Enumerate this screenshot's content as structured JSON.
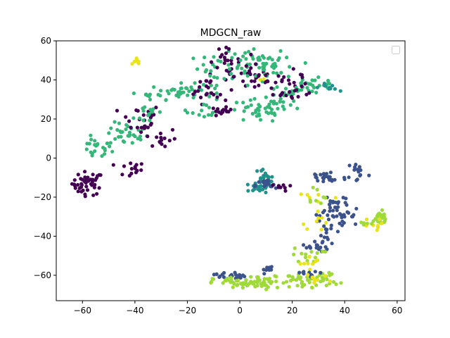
{
  "chart_data": {
    "type": "scatter",
    "title": "MDGCN_raw",
    "xlabel": "",
    "ylabel": "",
    "xlim": [
      -70,
      63
    ],
    "ylim": [
      -73,
      60
    ],
    "x_ticks": [
      -60,
      -40,
      -20,
      0,
      20,
      40,
      60
    ],
    "y_ticks": [
      -60,
      -40,
      -20,
      0,
      20,
      40,
      60
    ],
    "x_tick_labels": [
      "−60",
      "−40",
      "−20",
      "0",
      "20",
      "40",
      "60"
    ],
    "y_tick_labels": [
      "−60",
      "−40",
      "−20",
      "0",
      "20",
      "40",
      "60"
    ],
    "grid": false,
    "legend": {
      "placement": "top-right",
      "entries": []
    },
    "colormap": "viridis",
    "palette": {
      "dark_purple": "#440154",
      "indigo": "#3b528b",
      "teal": "#21918c",
      "green": "#35b779",
      "lime": "#a0da39",
      "yellow": "#e8e419"
    },
    "clusters": [
      {
        "color": "yellow",
        "cx": -39,
        "cy": 49,
        "sx": 1,
        "sy": 1.5,
        "n": 8
      },
      {
        "color": "dark_purple",
        "cx": -58,
        "cy": -13,
        "sx": 3,
        "sy": 3,
        "n": 45
      },
      {
        "color": "dark_purple",
        "cx": -42,
        "cy": -6,
        "sx": 3,
        "sy": 2,
        "n": 14
      },
      {
        "color": "green",
        "cx": -55,
        "cy": 5,
        "sx": 3,
        "sy": 3,
        "n": 22
      },
      {
        "color": "green",
        "cx": -43,
        "cy": 12,
        "sx": 4,
        "sy": 3,
        "n": 32
      },
      {
        "color": "dark_purple",
        "cx": -38,
        "cy": 20,
        "sx": 4,
        "sy": 4,
        "n": 25
      },
      {
        "color": "green",
        "cx": -34,
        "cy": 23,
        "sx": 3,
        "sy": 3,
        "n": 14
      },
      {
        "color": "dark_purple",
        "cx": -30,
        "cy": 10,
        "sx": 3,
        "sy": 3,
        "n": 14
      },
      {
        "color": "green",
        "cx": -36,
        "cy": 32,
        "sx": 2,
        "sy": 1,
        "n": 6
      },
      {
        "color": "green",
        "cx": -22,
        "cy": 34,
        "sx": 6,
        "sy": 2,
        "n": 40
      },
      {
        "color": "dark_purple",
        "cx": -12,
        "cy": 36,
        "sx": 4,
        "sy": 4,
        "n": 24
      },
      {
        "color": "green",
        "cx": -12,
        "cy": 24,
        "sx": 4,
        "sy": 2,
        "n": 14
      },
      {
        "color": "dark_purple",
        "cx": -7,
        "cy": 24,
        "sx": 2,
        "sy": 1,
        "n": 15
      },
      {
        "color": "green",
        "cx": -9,
        "cy": 46,
        "sx": 5,
        "sy": 4,
        "n": 22
      },
      {
        "color": "dark_purple",
        "cx": -6,
        "cy": 50,
        "sx": 3,
        "sy": 3,
        "n": 22
      },
      {
        "color": "green",
        "cx": 4,
        "cy": 48,
        "sx": 5,
        "sy": 4,
        "n": 34
      },
      {
        "color": "dark_purple",
        "cx": 6,
        "cy": 42,
        "sx": 4,
        "sy": 5,
        "n": 24
      },
      {
        "color": "green",
        "cx": 7,
        "cy": 24,
        "sx": 6,
        "sy": 3,
        "n": 38
      },
      {
        "color": "green",
        "cx": 16,
        "cy": 30,
        "sx": 4,
        "sy": 3,
        "n": 20
      },
      {
        "color": "green",
        "cx": 14,
        "cy": 46,
        "sx": 5,
        "sy": 4,
        "n": 30
      },
      {
        "color": "dark_purple",
        "cx": 16,
        "cy": 38,
        "sx": 4,
        "sy": 4,
        "n": 20
      },
      {
        "color": "green",
        "cx": 27,
        "cy": 37,
        "sx": 5,
        "sy": 2,
        "n": 30
      },
      {
        "color": "dark_purple",
        "cx": 22,
        "cy": 38,
        "sx": 4,
        "sy": 3,
        "n": 14
      },
      {
        "color": "teal",
        "cx": 34,
        "cy": 36,
        "sx": 2,
        "sy": 1,
        "n": 10
      },
      {
        "color": "yellow",
        "cx": 8,
        "cy": 40,
        "sx": 0.5,
        "sy": 0.5,
        "n": 2
      },
      {
        "color": "teal",
        "cx": 9,
        "cy": -11,
        "sx": 1.5,
        "sy": 3,
        "n": 28
      },
      {
        "color": "teal",
        "cx": 6,
        "cy": -15,
        "sx": 3,
        "sy": 1.5,
        "n": 16
      },
      {
        "color": "indigo",
        "cx": 10,
        "cy": -14,
        "sx": 2,
        "sy": 1.5,
        "n": 16
      },
      {
        "color": "dark_purple",
        "cx": 16,
        "cy": -15,
        "sx": 2,
        "sy": 1,
        "n": 8
      },
      {
        "color": "indigo",
        "cx": 33,
        "cy": -10,
        "sx": 4,
        "sy": 2,
        "n": 26
      },
      {
        "color": "indigo",
        "cx": 45,
        "cy": -7,
        "sx": 2,
        "sy": 3,
        "n": 14
      },
      {
        "color": "indigo",
        "cx": 36,
        "cy": -23,
        "sx": 3,
        "sy": 3,
        "n": 18
      },
      {
        "color": "indigo",
        "cx": 38,
        "cy": -30,
        "sx": 4,
        "sy": 4,
        "n": 30
      },
      {
        "color": "indigo",
        "cx": 33,
        "cy": -38,
        "sx": 2,
        "sy": 4,
        "n": 16
      },
      {
        "color": "yellow",
        "cx": 30,
        "cy": -25,
        "sx": 3,
        "sy": 6,
        "n": 14
      },
      {
        "color": "lime",
        "cx": 29,
        "cy": -19,
        "sx": 2,
        "sy": 3,
        "n": 8
      },
      {
        "color": "lime",
        "cx": 53,
        "cy": -31,
        "sx": 2,
        "sy": 2,
        "n": 26
      },
      {
        "color": "yellow",
        "cx": 50,
        "cy": -34,
        "sx": 2,
        "sy": 1.5,
        "n": 8
      },
      {
        "color": "lime",
        "cx": 47,
        "cy": -34,
        "sx": 1.5,
        "sy": 1,
        "n": 5
      },
      {
        "color": "indigo",
        "cx": 28,
        "cy": -46,
        "sx": 3,
        "sy": 1,
        "n": 14
      },
      {
        "color": "lime",
        "cx": 26,
        "cy": -50,
        "sx": 3,
        "sy": 2,
        "n": 14
      },
      {
        "color": "yellow",
        "cx": 27,
        "cy": -54,
        "sx": 2,
        "sy": 2,
        "n": 8
      },
      {
        "color": "indigo",
        "cx": -4,
        "cy": -60,
        "sx": 3,
        "sy": 1,
        "n": 20
      },
      {
        "color": "indigo",
        "cx": 10,
        "cy": -57,
        "sx": 1.5,
        "sy": 1,
        "n": 8
      },
      {
        "color": "lime",
        "cx": 0,
        "cy": -64,
        "sx": 5,
        "sy": 1.5,
        "n": 40
      },
      {
        "color": "lime",
        "cx": 10,
        "cy": -64,
        "sx": 4,
        "sy": 2,
        "n": 34
      },
      {
        "color": "lime",
        "cx": 21,
        "cy": -62,
        "sx": 2,
        "sy": 1.5,
        "n": 14
      },
      {
        "color": "lime",
        "cx": 30,
        "cy": -62,
        "sx": 4,
        "sy": 2,
        "n": 34
      },
      {
        "color": "indigo",
        "cx": 26,
        "cy": -59,
        "sx": 3,
        "sy": 1,
        "n": 10
      },
      {
        "color": "yellow",
        "cx": 28,
        "cy": -62,
        "sx": 3,
        "sy": 1,
        "n": 8
      }
    ]
  }
}
